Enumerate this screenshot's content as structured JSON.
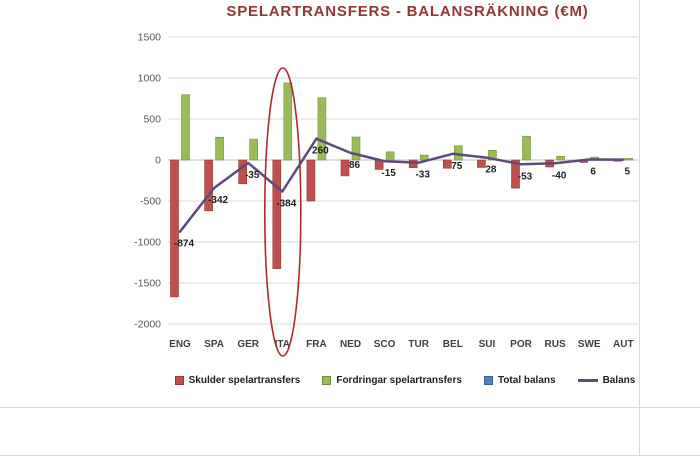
{
  "title": "SPELARTRANSFERS - BALANSRÄKNING (€M)",
  "chart_data": {
    "type": "bar",
    "subtype": "clustered-bars-with-balance-line",
    "categories": [
      "ENG",
      "SPA",
      "GER",
      "ITA",
      "FRA",
      "NED",
      "SCO",
      "TUR",
      "BEL",
      "SUI",
      "POR",
      "RUS",
      "SWE",
      "AUT"
    ],
    "series": [
      {
        "name": "Skulder spelartransfers",
        "kind": "bar",
        "color": "#C0504D",
        "border": "#943634",
        "values": [
          -1670,
          -620,
          -290,
          -1324,
          -500,
          -194,
          -115,
          -93,
          -100,
          -90,
          -343,
          -85,
          -29,
          -15
        ]
      },
      {
        "name": "Fordringar spelartransfers",
        "kind": "bar",
        "color": "#9BBB59",
        "border": "#77933C",
        "values": [
          796,
          278,
          255,
          940,
          760,
          280,
          100,
          60,
          175,
          118,
          290,
          45,
          35,
          20
        ]
      },
      {
        "name": "Total balans",
        "kind": "bar",
        "color": "#4F81BD",
        "border": "#366092",
        "values": null
      },
      {
        "name": "Balans",
        "kind": "line",
        "color": "#60497B",
        "show_labels": true,
        "values": [
          -874,
          -342,
          -35,
          -384,
          260,
          86,
          -15,
          -33,
          75,
          28,
          -53,
          -40,
          6,
          5
        ]
      }
    ],
    "ylim": [
      -2000,
      1500
    ],
    "yticks": [
      1500,
      1000,
      500,
      0,
      -500,
      -1000,
      -1500,
      -2000
    ],
    "grid": true,
    "legend_position": "bottom",
    "annotation": {
      "shape": "ellipse",
      "color": "#B02A2A",
      "highlight_category": "ITA"
    }
  }
}
